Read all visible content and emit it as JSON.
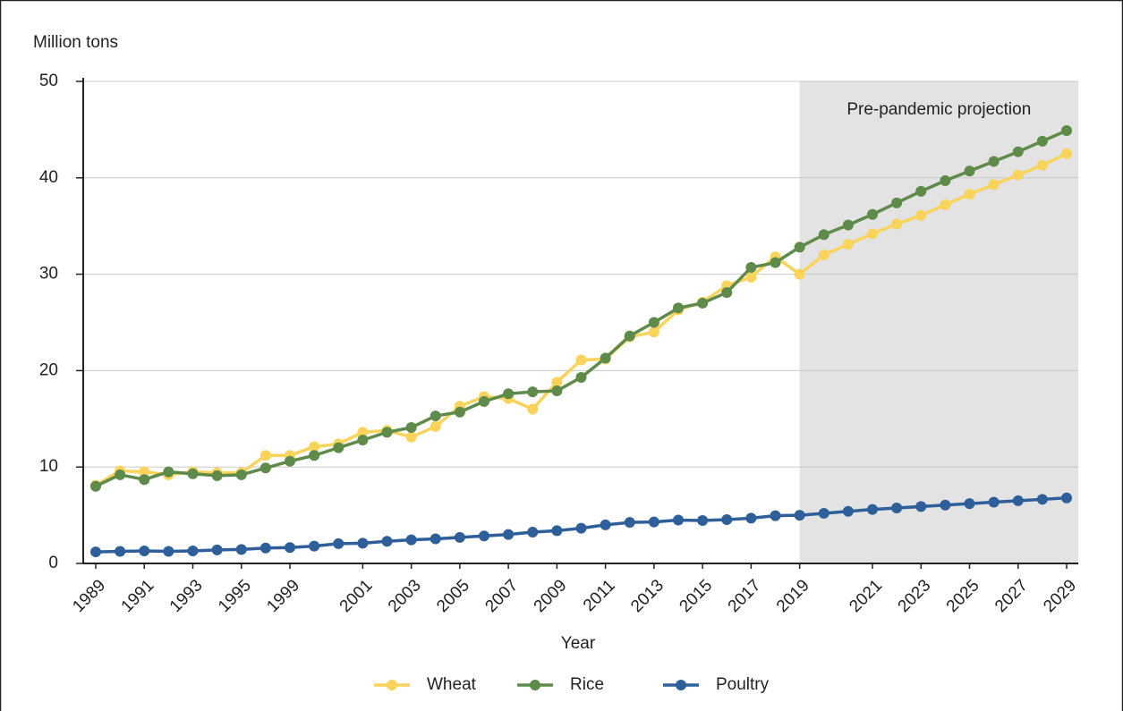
{
  "chart_data": {
    "type": "line",
    "y_axis_label": "Million tons",
    "x_axis_label": "Year",
    "annotation": "Pre-pandemic projection",
    "shaded_from": "2019",
    "categories": [
      "1989",
      null,
      "1991",
      null,
      "1993",
      null,
      "1995",
      null,
      "1999",
      null,
      null,
      "2001",
      null,
      "2003",
      null,
      "2005",
      null,
      "2007",
      null,
      "2009",
      null,
      "2011",
      null,
      "2013",
      null,
      "2015",
      null,
      "2017",
      null,
      "2019",
      null,
      null,
      "2021",
      null,
      "2023",
      null,
      "2025",
      null,
      "2027",
      null,
      "2029"
    ],
    "series": [
      {
        "name": "Wheat",
        "color": "#f9d35a",
        "values": [
          8.1,
          9.6,
          9.5,
          9.2,
          9.5,
          9.4,
          9.4,
          11.2,
          11.2,
          12.1,
          12.4,
          13.6,
          13.8,
          13.1,
          14.2,
          16.3,
          17.3,
          17.1,
          16.0,
          18.8,
          21.1,
          21.2,
          23.5,
          24.0,
          26.3,
          27.1,
          28.8,
          29.7,
          31.8,
          30.0,
          32.0,
          33.1,
          34.2,
          35.2,
          36.1,
          37.2,
          38.3,
          39.3,
          40.3,
          41.3,
          42.5
        ]
      },
      {
        "name": "Rice",
        "color": "#5e8a4a",
        "values": [
          8.0,
          9.2,
          8.7,
          9.5,
          9.3,
          9.1,
          9.2,
          9.9,
          10.6,
          11.2,
          12.0,
          12.8,
          13.6,
          14.1,
          15.3,
          15.7,
          16.8,
          17.6,
          17.8,
          17.9,
          19.3,
          21.3,
          23.6,
          25.0,
          26.5,
          27.0,
          28.1,
          30.7,
          31.2,
          32.8,
          34.1,
          35.1,
          36.2,
          37.4,
          38.6,
          39.7,
          40.7,
          41.7,
          42.7,
          43.8,
          44.9
        ]
      },
      {
        "name": "Poultry",
        "color": "#2e5f9a",
        "values": [
          1.2,
          1.25,
          1.3,
          1.25,
          1.3,
          1.4,
          1.45,
          1.6,
          1.65,
          1.8,
          2.05,
          2.1,
          2.3,
          2.45,
          2.55,
          2.7,
          2.85,
          3.0,
          3.25,
          3.4,
          3.65,
          4.0,
          4.25,
          4.3,
          4.5,
          4.45,
          4.55,
          4.7,
          4.95,
          5.0,
          5.2,
          5.4,
          5.6,
          5.75,
          5.9,
          6.05,
          6.2,
          6.35,
          6.5,
          6.65,
          6.8
        ]
      }
    ],
    "ylim": [
      0,
      50
    ],
    "yticks": [
      0,
      10,
      20,
      30,
      40,
      50
    ],
    "grid": true,
    "legend": "bottom"
  }
}
